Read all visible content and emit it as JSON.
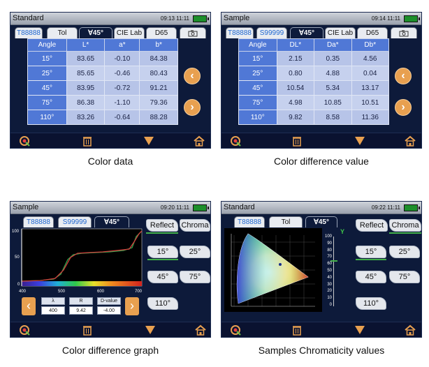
{
  "panels": {
    "color_data": {
      "title": "Standard",
      "time": "09:13 11:11",
      "tabs": [
        "T88888",
        "Tol",
        "∀45°",
        "CIE Lab",
        "D65"
      ],
      "headers": [
        "Angle",
        "L*",
        "a*",
        "b*"
      ],
      "rows": [
        [
          "15°",
          "83.65",
          "-0.10",
          "84.38"
        ],
        [
          "25°",
          "85.65",
          "-0.46",
          "80.43"
        ],
        [
          "45°",
          "83.95",
          "-0.72",
          "91.21"
        ],
        [
          "75°",
          "86.38",
          "-1.10",
          "79.36"
        ],
        [
          "110°",
          "83.26",
          "-0.64",
          "88.28"
        ]
      ],
      "caption": "Color data"
    },
    "color_diff": {
      "title": "Sample",
      "time": "09:14 11:11",
      "tabs": [
        "T88888",
        "S99999",
        "∀45°",
        "CIE Lab",
        "D65"
      ],
      "headers": [
        "Angle",
        "DL*",
        "Da*",
        "Db*"
      ],
      "rows": [
        [
          "15°",
          "2.15",
          "0.35",
          "4.56"
        ],
        [
          "25°",
          "0.80",
          "4.88",
          "0.04"
        ],
        [
          "45°",
          "10.54",
          "5.34",
          "13.17"
        ],
        [
          "75°",
          "4.98",
          "10.85",
          "10.51"
        ],
        [
          "110°",
          "9.82",
          "8.58",
          "11.36"
        ]
      ],
      "caption": "Color difference value"
    },
    "diff_graph": {
      "title": "Sample",
      "time": "09:20 11:11",
      "tabs": [
        "T88888",
        "S99999",
        "∀45°"
      ],
      "mode_buttons": [
        "Reflect",
        "Chroma"
      ],
      "angle_buttons": [
        "15°",
        "25°",
        "45°",
        "75°",
        "110°"
      ],
      "y_ticks": [
        "100",
        "50",
        "0"
      ],
      "x_ticks": [
        "400",
        "500",
        "600",
        "700"
      ],
      "value_headers": [
        "λ",
        "R",
        "D-value"
      ],
      "values": [
        "400",
        "9.42",
        "-4.00"
      ],
      "caption": "Color difference graph"
    },
    "chromaticity": {
      "title": "Standard",
      "time": "09:22 11:11",
      "tabs": [
        "T88888",
        "Tol",
        "∀45°"
      ],
      "mode_buttons": [
        "Reflect",
        "Chroma"
      ],
      "angle_buttons": [
        "15°",
        "25°",
        "45°",
        "75°",
        "110°"
      ],
      "y_axis_label": "Y",
      "y_ticks": [
        "100",
        "90",
        "80",
        "70",
        "60",
        "50",
        "40",
        "30",
        "20",
        "10",
        "0"
      ],
      "caption": "Samples Chromaticity values"
    }
  },
  "colors": {
    "screen_bg": "#0d1a3a",
    "table_header": "#5078d6",
    "table_cell": "#b7c4e8",
    "accent_button": "#e8a050",
    "curve_standard": "#2fa84f",
    "curve_sample": "#d23a3a"
  },
  "icons": [
    "target-icon",
    "trash-icon",
    "down-arrow-icon",
    "home-icon",
    "camera-icon",
    "battery-icon"
  ]
}
